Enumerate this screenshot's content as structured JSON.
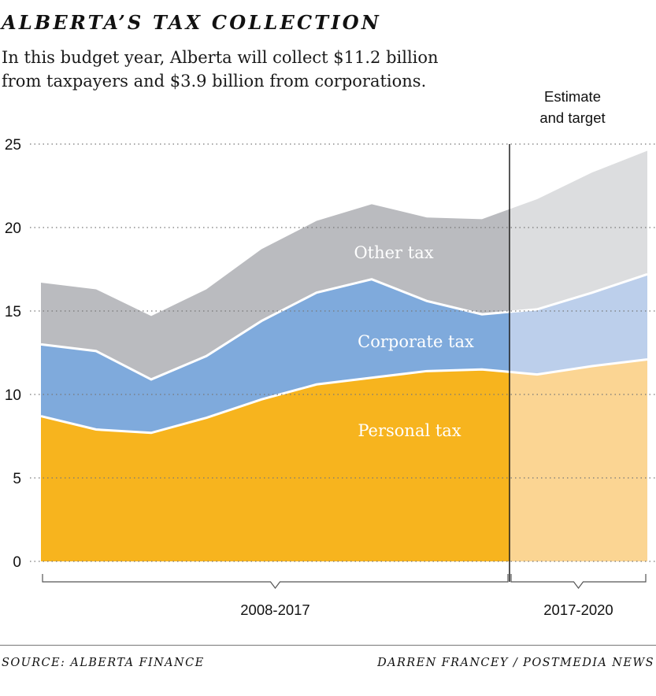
{
  "title": "ALBERTA’S TAX COLLECTION",
  "subtitle": "In this budget year, Alberta will collect $11.2 billion from taxpayers and $3.9 billion from corporations.",
  "estimate_label_line1": "Estimate",
  "estimate_label_line2": "and target",
  "footer": {
    "source": "SOURCE: ALBERTA FINANCE",
    "credit": "DARREN FRANCEY / POSTMEDIA NEWS"
  },
  "colors": {
    "personal": "#f7b41e",
    "personal_estimate": "#fbd593",
    "corporate": "#7faadc",
    "corporate_estimate": "#bccfeb",
    "other": "#babbbf",
    "other_estimate": "#dcdddf",
    "divider": "#111111",
    "grid": "#777777"
  },
  "chart_data": {
    "type": "area",
    "stacked": true,
    "title": "ALBERTA’S TAX COLLECTION",
    "xlabel": "",
    "ylabel": "",
    "units": "billions of dollars",
    "ylim": [
      0,
      25
    ],
    "yticks": [
      0,
      5,
      10,
      15,
      20,
      25
    ],
    "grid": true,
    "legend": "inline labels",
    "x_index": [
      0,
      1,
      2,
      3,
      4,
      5,
      6,
      7,
      8,
      9,
      10,
      11
    ],
    "estimate_starts_at_index": 8.5,
    "periods": [
      {
        "label": "2008-2017",
        "from_index": 0,
        "to_index": 8.5
      },
      {
        "label": "2017-2020",
        "from_index": 8.5,
        "to_index": 11
      }
    ],
    "series": [
      {
        "name": "Personal tax",
        "values": [
          8.7,
          7.9,
          7.7,
          8.6,
          9.7,
          10.6,
          11.0,
          11.4,
          11.5,
          11.2,
          11.7,
          12.1
        ]
      },
      {
        "name": "Corporate tax",
        "values": [
          4.3,
          4.7,
          3.2,
          3.7,
          4.7,
          5.5,
          5.9,
          4.2,
          3.3,
          3.9,
          4.4,
          5.1
        ]
      },
      {
        "name": "Other tax",
        "values": [
          3.7,
          3.7,
          3.8,
          4.0,
          4.3,
          4.3,
          4.5,
          5.0,
          5.7,
          6.6,
          7.2,
          7.4
        ]
      }
    ],
    "totals": [
      16.7,
      16.3,
      14.7,
      16.3,
      18.7,
      20.4,
      21.4,
      20.6,
      20.5,
      21.7,
      23.3,
      24.6
    ]
  }
}
